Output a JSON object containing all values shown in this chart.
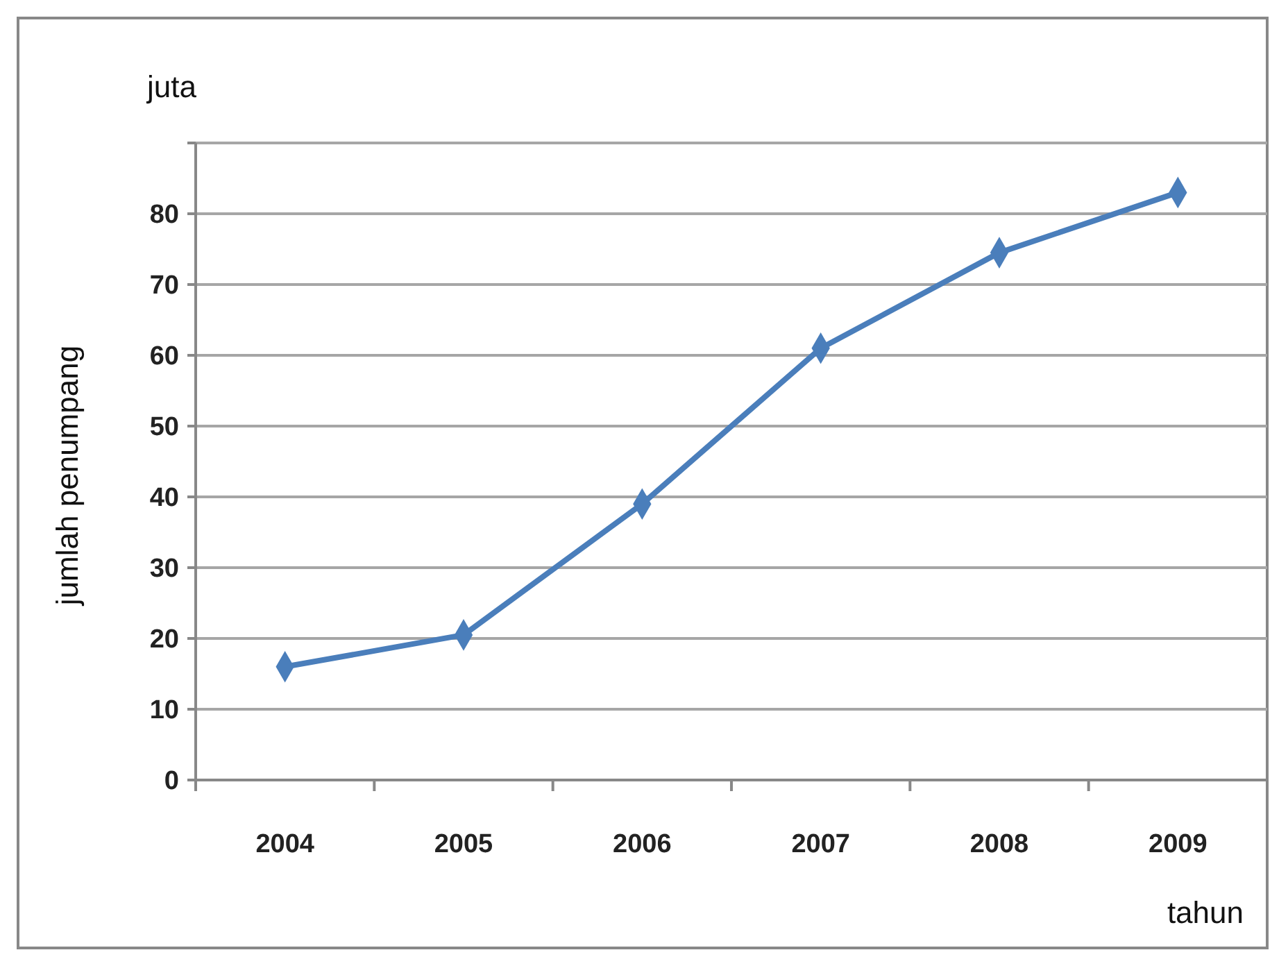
{
  "chart_data": {
    "type": "line",
    "categories": [
      "2004",
      "2005",
      "2006",
      "2007",
      "2008",
      "2009"
    ],
    "series": [
      {
        "color": "#4a7ebb",
        "values": [
          16,
          20.5,
          39,
          61,
          74.5,
          83
        ]
      }
    ],
    "ylim": [
      0,
      90
    ],
    "yticks": [
      0,
      10,
      20,
      30,
      40,
      50,
      60,
      70,
      80,
      {
        "value": 90,
        "label": null
      }
    ],
    "ylabel": "jumlah penumpang",
    "xlabel": "tahun",
    "annotations": [
      "juta"
    ],
    "grid": "y",
    "marker": "diamond",
    "line_style": "solid"
  }
}
